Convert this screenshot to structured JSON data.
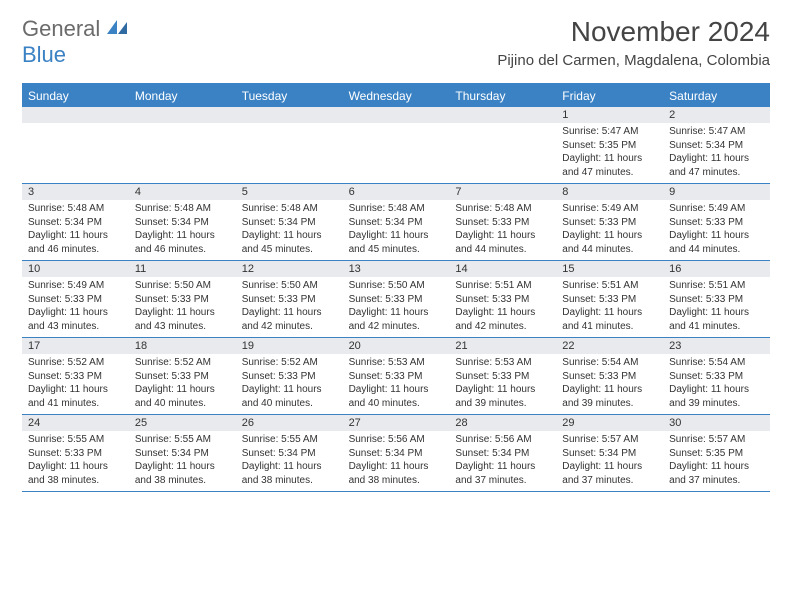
{
  "brand": {
    "top": "General",
    "bottom": "Blue"
  },
  "title": "November 2024",
  "location": "Pijino del Carmen, Magdalena, Colombia",
  "colors": {
    "accent": "#3b82c4",
    "header_bg": "#3b82c4",
    "daynum_bg": "#e8eaed",
    "text": "#333333",
    "background": "#ffffff"
  },
  "day_names": [
    "Sunday",
    "Monday",
    "Tuesday",
    "Wednesday",
    "Thursday",
    "Friday",
    "Saturday"
  ],
  "weeks": [
    [
      {
        "n": "",
        "sr": "",
        "ss": "",
        "dl": ""
      },
      {
        "n": "",
        "sr": "",
        "ss": "",
        "dl": ""
      },
      {
        "n": "",
        "sr": "",
        "ss": "",
        "dl": ""
      },
      {
        "n": "",
        "sr": "",
        "ss": "",
        "dl": ""
      },
      {
        "n": "",
        "sr": "",
        "ss": "",
        "dl": ""
      },
      {
        "n": "1",
        "sr": "Sunrise: 5:47 AM",
        "ss": "Sunset: 5:35 PM",
        "dl": "Daylight: 11 hours and 47 minutes."
      },
      {
        "n": "2",
        "sr": "Sunrise: 5:47 AM",
        "ss": "Sunset: 5:34 PM",
        "dl": "Daylight: 11 hours and 47 minutes."
      }
    ],
    [
      {
        "n": "3",
        "sr": "Sunrise: 5:48 AM",
        "ss": "Sunset: 5:34 PM",
        "dl": "Daylight: 11 hours and 46 minutes."
      },
      {
        "n": "4",
        "sr": "Sunrise: 5:48 AM",
        "ss": "Sunset: 5:34 PM",
        "dl": "Daylight: 11 hours and 46 minutes."
      },
      {
        "n": "5",
        "sr": "Sunrise: 5:48 AM",
        "ss": "Sunset: 5:34 PM",
        "dl": "Daylight: 11 hours and 45 minutes."
      },
      {
        "n": "6",
        "sr": "Sunrise: 5:48 AM",
        "ss": "Sunset: 5:34 PM",
        "dl": "Daylight: 11 hours and 45 minutes."
      },
      {
        "n": "7",
        "sr": "Sunrise: 5:48 AM",
        "ss": "Sunset: 5:33 PM",
        "dl": "Daylight: 11 hours and 44 minutes."
      },
      {
        "n": "8",
        "sr": "Sunrise: 5:49 AM",
        "ss": "Sunset: 5:33 PM",
        "dl": "Daylight: 11 hours and 44 minutes."
      },
      {
        "n": "9",
        "sr": "Sunrise: 5:49 AM",
        "ss": "Sunset: 5:33 PM",
        "dl": "Daylight: 11 hours and 44 minutes."
      }
    ],
    [
      {
        "n": "10",
        "sr": "Sunrise: 5:49 AM",
        "ss": "Sunset: 5:33 PM",
        "dl": "Daylight: 11 hours and 43 minutes."
      },
      {
        "n": "11",
        "sr": "Sunrise: 5:50 AM",
        "ss": "Sunset: 5:33 PM",
        "dl": "Daylight: 11 hours and 43 minutes."
      },
      {
        "n": "12",
        "sr": "Sunrise: 5:50 AM",
        "ss": "Sunset: 5:33 PM",
        "dl": "Daylight: 11 hours and 42 minutes."
      },
      {
        "n": "13",
        "sr": "Sunrise: 5:50 AM",
        "ss": "Sunset: 5:33 PM",
        "dl": "Daylight: 11 hours and 42 minutes."
      },
      {
        "n": "14",
        "sr": "Sunrise: 5:51 AM",
        "ss": "Sunset: 5:33 PM",
        "dl": "Daylight: 11 hours and 42 minutes."
      },
      {
        "n": "15",
        "sr": "Sunrise: 5:51 AM",
        "ss": "Sunset: 5:33 PM",
        "dl": "Daylight: 11 hours and 41 minutes."
      },
      {
        "n": "16",
        "sr": "Sunrise: 5:51 AM",
        "ss": "Sunset: 5:33 PM",
        "dl": "Daylight: 11 hours and 41 minutes."
      }
    ],
    [
      {
        "n": "17",
        "sr": "Sunrise: 5:52 AM",
        "ss": "Sunset: 5:33 PM",
        "dl": "Daylight: 11 hours and 41 minutes."
      },
      {
        "n": "18",
        "sr": "Sunrise: 5:52 AM",
        "ss": "Sunset: 5:33 PM",
        "dl": "Daylight: 11 hours and 40 minutes."
      },
      {
        "n": "19",
        "sr": "Sunrise: 5:52 AM",
        "ss": "Sunset: 5:33 PM",
        "dl": "Daylight: 11 hours and 40 minutes."
      },
      {
        "n": "20",
        "sr": "Sunrise: 5:53 AM",
        "ss": "Sunset: 5:33 PM",
        "dl": "Daylight: 11 hours and 40 minutes."
      },
      {
        "n": "21",
        "sr": "Sunrise: 5:53 AM",
        "ss": "Sunset: 5:33 PM",
        "dl": "Daylight: 11 hours and 39 minutes."
      },
      {
        "n": "22",
        "sr": "Sunrise: 5:54 AM",
        "ss": "Sunset: 5:33 PM",
        "dl": "Daylight: 11 hours and 39 minutes."
      },
      {
        "n": "23",
        "sr": "Sunrise: 5:54 AM",
        "ss": "Sunset: 5:33 PM",
        "dl": "Daylight: 11 hours and 39 minutes."
      }
    ],
    [
      {
        "n": "24",
        "sr": "Sunrise: 5:55 AM",
        "ss": "Sunset: 5:33 PM",
        "dl": "Daylight: 11 hours and 38 minutes."
      },
      {
        "n": "25",
        "sr": "Sunrise: 5:55 AM",
        "ss": "Sunset: 5:34 PM",
        "dl": "Daylight: 11 hours and 38 minutes."
      },
      {
        "n": "26",
        "sr": "Sunrise: 5:55 AM",
        "ss": "Sunset: 5:34 PM",
        "dl": "Daylight: 11 hours and 38 minutes."
      },
      {
        "n": "27",
        "sr": "Sunrise: 5:56 AM",
        "ss": "Sunset: 5:34 PM",
        "dl": "Daylight: 11 hours and 38 minutes."
      },
      {
        "n": "28",
        "sr": "Sunrise: 5:56 AM",
        "ss": "Sunset: 5:34 PM",
        "dl": "Daylight: 11 hours and 37 minutes."
      },
      {
        "n": "29",
        "sr": "Sunrise: 5:57 AM",
        "ss": "Sunset: 5:34 PM",
        "dl": "Daylight: 11 hours and 37 minutes."
      },
      {
        "n": "30",
        "sr": "Sunrise: 5:57 AM",
        "ss": "Sunset: 5:35 PM",
        "dl": "Daylight: 11 hours and 37 minutes."
      }
    ]
  ]
}
